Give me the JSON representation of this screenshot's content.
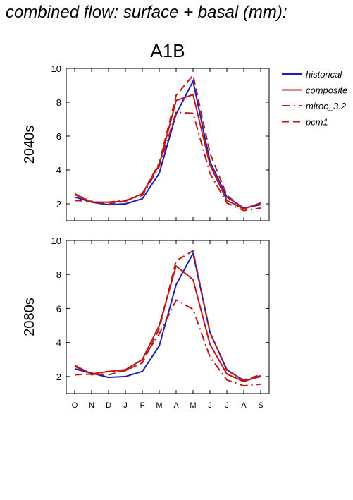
{
  "page_title": "combined flow: surface + basal (mm):",
  "colors": {
    "historical": "#1f1fb4",
    "composite": "#c0171a",
    "miroc_3.2": "#c0171a",
    "pcm1": "#c0171a"
  },
  "chart_data": {
    "type": "line",
    "title": "A1B",
    "categories": [
      "O",
      "N",
      "D",
      "J",
      "F",
      "M",
      "A",
      "M",
      "J",
      "J",
      "A",
      "S"
    ],
    "ylim": [
      1,
      10
    ],
    "yticks": [
      2,
      4,
      6,
      8,
      10
    ],
    "grid": false,
    "legend_position": "right",
    "legend": [
      {
        "name": "historical",
        "style": "solid",
        "color": "#1f1fb4"
      },
      {
        "name": "composite",
        "style": "solid",
        "color": "#c0171a"
      },
      {
        "name": "miroc_3.2",
        "style": "dashdot",
        "color": "#c0171a"
      },
      {
        "name": "pcm1",
        "style": "dash",
        "color": "#c0171a"
      }
    ],
    "panels": [
      {
        "label": "2040s",
        "series": [
          {
            "name": "historical",
            "values": [
              2.4,
              2.1,
              1.95,
              2.0,
              2.3,
              3.8,
              7.3,
              9.25,
              4.5,
              2.4,
              1.75,
              1.95
            ]
          },
          {
            "name": "composite",
            "values": [
              2.55,
              2.1,
              2.1,
              2.15,
              2.6,
              4.3,
              8.1,
              8.45,
              4.3,
              2.2,
              1.7,
              2.05
            ]
          },
          {
            "name": "miroc_3.2",
            "values": [
              2.6,
              2.1,
              2.1,
              2.2,
              2.5,
              4.2,
              7.4,
              7.35,
              3.8,
              2.05,
              1.6,
              1.75
            ]
          },
          {
            "name": "pcm1",
            "values": [
              2.2,
              2.15,
              2.0,
              2.15,
              2.6,
              4.4,
              8.4,
              9.6,
              5.0,
              2.5,
              1.7,
              2.05
            ]
          }
        ]
      },
      {
        "label": "2080s",
        "series": [
          {
            "name": "historical",
            "values": [
              2.45,
              2.2,
              1.95,
              2.0,
              2.3,
              3.8,
              7.4,
              9.25,
              4.6,
              2.4,
              1.75,
              2.0
            ]
          },
          {
            "name": "composite",
            "values": [
              2.65,
              2.15,
              2.3,
              2.4,
              3.0,
              5.0,
              8.5,
              7.7,
              3.9,
              2.15,
              1.7,
              2.05
            ]
          },
          {
            "name": "miroc_3.2",
            "values": [
              2.6,
              2.1,
              2.3,
              2.35,
              3.0,
              4.5,
              6.5,
              5.95,
              3.15,
              1.8,
              1.45,
              1.55
            ]
          },
          {
            "name": "pcm1",
            "values": [
              2.1,
              2.15,
              2.1,
              2.35,
              2.8,
              4.8,
              8.8,
              9.4,
              4.6,
              2.35,
              1.8,
              2.1
            ]
          }
        ]
      }
    ]
  }
}
